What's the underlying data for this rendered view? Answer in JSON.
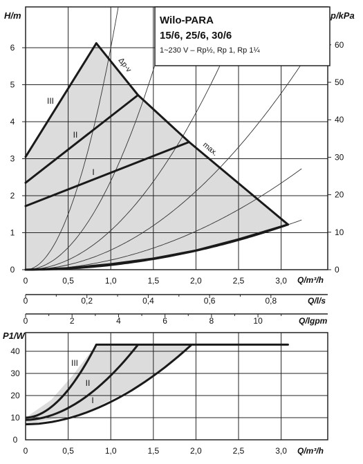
{
  "info_box": {
    "brand": "Wilo-PARA",
    "models": "15/6, 25/6, 30/6",
    "spec": "1~230 V – Rp½, Rp 1, Rp 1¼"
  },
  "colors": {
    "fill": "#dcdcdc",
    "curve": "#1a1a1a",
    "grid": "#222222",
    "thin": "#333333"
  },
  "chart_data": [
    {
      "type": "line",
      "title": "",
      "xlabel": "Q/m³/h",
      "ylabel": "H/m",
      "y2label": "p/kPa",
      "xlim": [
        0,
        3.25
      ],
      "ylim": [
        0,
        7.0
      ],
      "y2lim": [
        0,
        68.6
      ],
      "x_ticks": [
        "0",
        "0,5",
        "1,0",
        "1,5",
        "2,0",
        "2,5",
        "3,0"
      ],
      "y_ticks": [
        "0",
        "1",
        "2",
        "3",
        "4",
        "5",
        "6"
      ],
      "y2_ticks": [
        "0",
        "10",
        "20",
        "30",
        "40",
        "50",
        "60"
      ],
      "grid": true,
      "secondary_x_axes": [
        {
          "label": "Q/l/s",
          "ticks": [
            "0",
            "0,2",
            "0,4",
            "0,6",
            "0,8"
          ]
        },
        {
          "label": "Q/lgpm",
          "ticks": [
            "0",
            "2",
            "4",
            "6",
            "8",
            "10"
          ]
        }
      ],
      "series": [
        {
          "name": "III",
          "x": [
            0,
            0.83
          ],
          "y": [
            3.05,
            6.12
          ]
        },
        {
          "name": "II",
          "x": [
            0,
            1.32
          ],
          "y": [
            2.35,
            4.72
          ]
        },
        {
          "name": "I",
          "x": [
            0,
            1.92
          ],
          "y": [
            1.72,
            3.45
          ]
        },
        {
          "name": "Δp-v",
          "x": [
            0.83,
            1.32,
            1.92
          ],
          "y": [
            6.12,
            4.72,
            3.45
          ]
        },
        {
          "name": "max.",
          "x": [
            1.92,
            3.08
          ],
          "y": [
            3.45,
            1.22
          ]
        },
        {
          "name": "",
          "x": [
            0,
            0.5,
            1.0,
            1.5,
            2.0,
            2.5,
            3.08
          ],
          "y": [
            0,
            0.04,
            0.15,
            0.3,
            0.52,
            0.82,
            1.22
          ]
        }
      ],
      "system_curves_k": [
        6.0,
        2.4,
        1.06,
        0.53,
        0.26,
        0.128
      ],
      "annotations": [
        "III",
        "II",
        "I",
        "Δp-v",
        "max."
      ]
    },
    {
      "type": "line",
      "title": "",
      "xlabel": "Q/m³/h",
      "ylabel": "P1/W",
      "xlim": [
        0,
        3.25
      ],
      "ylim": [
        0,
        48
      ],
      "x_ticks": [
        "0",
        "0,5",
        "1,0",
        "1,5",
        "2,0",
        "2,5",
        "3,0"
      ],
      "y_ticks": [
        "0",
        "10",
        "20",
        "30",
        "40"
      ],
      "grid": true,
      "series": [
        {
          "name": "III",
          "x": [
            0,
            0.3,
            0.55,
            0.83
          ],
          "y": [
            10,
            18,
            29,
            43
          ]
        },
        {
          "name": "II",
          "x": [
            0,
            0.5,
            1.0,
            1.32
          ],
          "y": [
            9,
            15,
            29,
            43
          ]
        },
        {
          "name": "I",
          "x": [
            0,
            0.7,
            1.4,
            1.95
          ],
          "y": [
            7,
            12,
            26,
            43
          ]
        },
        {
          "name": "",
          "x": [
            0.83,
            3.08
          ],
          "y": [
            43,
            43
          ]
        }
      ],
      "annotations": [
        "III",
        "II",
        "I"
      ]
    }
  ]
}
